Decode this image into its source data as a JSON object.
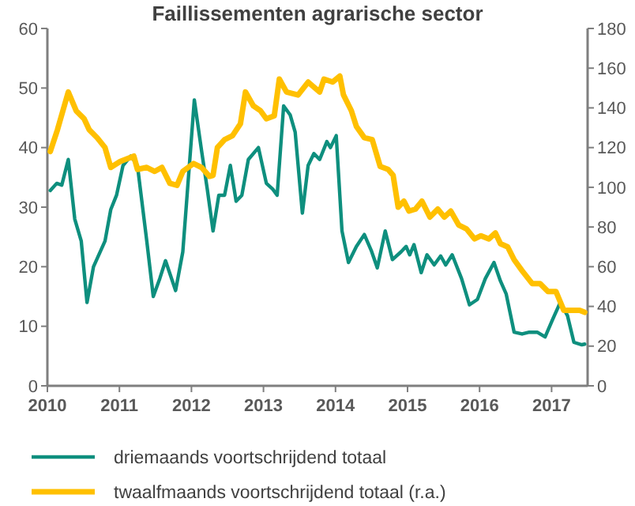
{
  "chart_data": {
    "type": "line",
    "title": "Faillissementen agrarische sector",
    "xlim": [
      2010,
      2017.5
    ],
    "xticks": [
      2010,
      2011,
      2012,
      2013,
      2014,
      2015,
      2016,
      2017
    ],
    "ylim": [
      0,
      60
    ],
    "yticks": [
      0,
      10,
      20,
      30,
      40,
      50,
      60
    ],
    "y2lim": [
      0,
      180
    ],
    "y2ticks": [
      0,
      20,
      40,
      60,
      80,
      100,
      120,
      140,
      160,
      180
    ],
    "grid": false,
    "legend": "bottom",
    "line_style": "solid",
    "marker": "none",
    "series": [
      {
        "name": "driemaands voortschrijdend totaal",
        "color": "#0e8f7e",
        "x": [
          2010.04,
          2010.13,
          2010.2,
          2010.29,
          2010.38,
          2010.47,
          2010.55,
          2010.64,
          2010.8,
          2010.88,
          2010.96,
          2011.05,
          2011.16,
          2011.25,
          2011.38,
          2011.47,
          2011.56,
          2011.64,
          2011.78,
          2011.88,
          2012.04,
          2012.14,
          2012.22,
          2012.3,
          2012.38,
          2012.46,
          2012.54,
          2012.62,
          2012.7,
          2012.79,
          2012.93,
          2013.04,
          2013.13,
          2013.19,
          2013.28,
          2013.37,
          2013.44,
          2013.54,
          2013.62,
          2013.7,
          2013.78,
          2013.88,
          2013.93,
          2014.01,
          2014.09,
          2014.18,
          2014.29,
          2014.4,
          2014.5,
          2014.58,
          2014.69,
          2014.79,
          2014.91,
          2014.98,
          2015.03,
          2015.09,
          2015.19,
          2015.27,
          2015.37,
          2015.46,
          2015.53,
          2015.62,
          2015.75,
          2015.86,
          2015.97,
          2016.08,
          2016.2,
          2016.29,
          2016.37,
          2016.48,
          2016.59,
          2016.69,
          2016.8,
          2016.91,
          2017.02,
          2017.12,
          2017.22,
          2017.31,
          2017.42,
          2017.46
        ],
        "values": [
          32.8,
          34,
          33.7,
          38,
          28,
          24.3,
          14,
          20,
          24.3,
          29.6,
          32,
          37,
          38.6,
          37,
          24.3,
          15,
          18,
          21,
          16,
          22.5,
          48,
          39.5,
          33,
          26,
          32,
          32,
          37,
          31,
          32,
          38,
          40,
          34,
          33,
          32,
          47,
          45.5,
          42.6,
          29,
          37,
          39,
          38,
          41,
          40,
          42,
          26,
          20.7,
          23.4,
          25.4,
          22.6,
          19.8,
          26,
          21.2,
          22.5,
          23.4,
          22,
          23.7,
          19,
          22,
          20.3,
          21.8,
          20.3,
          22,
          18,
          13.6,
          14.5,
          18,
          20.7,
          17.6,
          15.4,
          9,
          8.7,
          9,
          9,
          8.2,
          11.3,
          14,
          11.8,
          7.3,
          6.9,
          7
        ]
      },
      {
        "name": "twaalfmaands voortschrijdend totaal (r.a.)",
        "color": "#ffc000",
        "axis": "y2",
        "x": [
          2010.04,
          2010.14,
          2010.29,
          2010.4,
          2010.51,
          2010.58,
          2010.69,
          2010.8,
          2010.88,
          2011.01,
          2011.2,
          2011.25,
          2011.38,
          2011.49,
          2011.59,
          2011.7,
          2011.8,
          2011.88,
          2012.03,
          2012.14,
          2012.25,
          2012.3,
          2012.36,
          2012.46,
          2012.57,
          2012.68,
          2012.75,
          2012.86,
          2012.96,
          2013.04,
          2013.15,
          2013.22,
          2013.32,
          2013.48,
          2013.62,
          2013.78,
          2013.84,
          2013.96,
          2014.06,
          2014.11,
          2014.22,
          2014.29,
          2014.4,
          2014.51,
          2014.62,
          2014.73,
          2014.8,
          2014.87,
          2014.95,
          2015.02,
          2015.11,
          2015.2,
          2015.31,
          2015.42,
          2015.51,
          2015.6,
          2015.71,
          2015.82,
          2015.93,
          2016.02,
          2016.13,
          2016.22,
          2016.29,
          2016.39,
          2016.48,
          2016.59,
          2016.73,
          2016.84,
          2016.95,
          2017.06,
          2017.17,
          2017.28,
          2017.39,
          2017.46
        ],
        "values": [
          118,
          129,
          148,
          138.5,
          134.5,
          129,
          125,
          120,
          110,
          113,
          115.7,
          109,
          110,
          108,
          110,
          102,
          101,
          108,
          112,
          110,
          105.5,
          106,
          120,
          124,
          126,
          132,
          148,
          141,
          138.5,
          134.5,
          136,
          154.5,
          148,
          146.5,
          153,
          148,
          154.5,
          153,
          156,
          146.6,
          138.6,
          130.6,
          125,
          124,
          110.5,
          109,
          106,
          90,
          93,
          88,
          89,
          93,
          85,
          89,
          85,
          88,
          81,
          79,
          74,
          75.6,
          74,
          77,
          71.6,
          70,
          63.5,
          58,
          51.5,
          51.5,
          47.5,
          47.5,
          38,
          38,
          38,
          37
        ]
      }
    ]
  }
}
